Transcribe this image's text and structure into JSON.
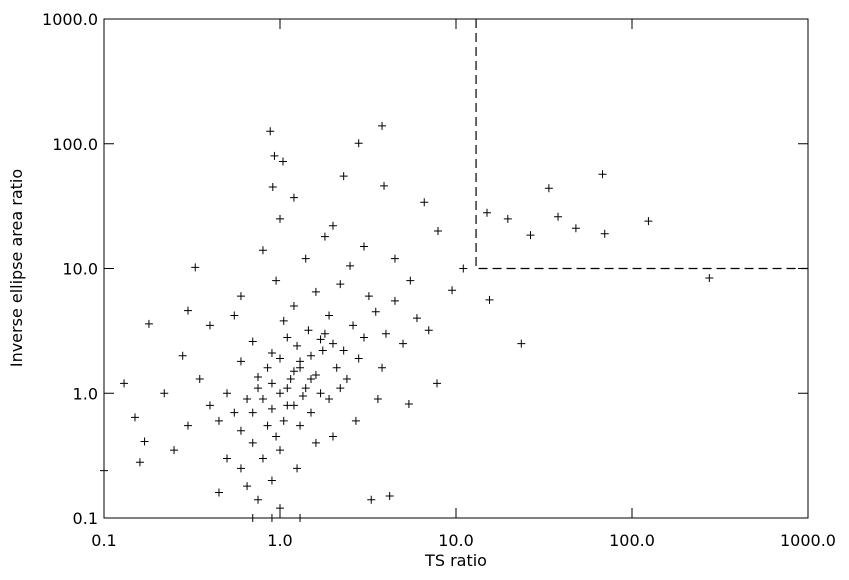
{
  "chart_data": {
    "type": "scatter",
    "x_label": "TS ratio",
    "y_label": "Inverse ellipse area ratio",
    "log_x": true,
    "log_y": true,
    "xlim": [
      0.1,
      1000
    ],
    "ylim": [
      0.1,
      1000
    ],
    "xticks": [
      {
        "value": 0.1,
        "label": "0.1"
      },
      {
        "value": 1,
        "label": "1.0"
      },
      {
        "value": 10,
        "label": "10.0"
      },
      {
        "value": 100,
        "label": "100.0"
      },
      {
        "value": 1000,
        "label": "1000.0"
      }
    ],
    "yticks": [
      {
        "value": 0.1,
        "label": "0.1"
      },
      {
        "value": 1,
        "label": "1.0"
      },
      {
        "value": 10,
        "label": "10.0"
      },
      {
        "value": 100,
        "label": "100.0"
      },
      {
        "value": 1000,
        "label": "1000.0"
      }
    ],
    "threshold_x": 13,
    "threshold_y": 10,
    "color": "#000000",
    "series": [
      {
        "color": "#000000",
        "x": [
          0.88,
          3.8,
          2.8,
          0.93,
          1.04,
          2.3,
          0.91,
          3.9,
          6.6,
          15,
          19.7,
          26.5,
          33.7,
          38,
          48,
          68,
          70,
          124,
          275,
          23.5,
          15.5,
          11,
          7.9,
          9.5,
          0.13,
          0.15,
          0.16,
          0.18,
          0.17,
          0.33,
          0.3,
          0.1,
          7.8,
          5.4,
          4.2,
          3.3,
          1.2,
          1.0,
          1.2,
          0.8,
          1.5,
          0.9,
          1.1,
          1.3,
          0.7,
          1.6,
          2.0,
          0.6,
          1.4,
          1.8,
          0.85,
          1.05,
          2.3,
          0.75,
          1.25,
          1.7,
          0.95,
          2.6,
          0.65,
          1.15,
          1.35,
          0.55,
          2.1,
          1.9,
          0.9,
          1.45,
          0.7,
          3.0,
          1.0,
          0.5,
          1.2,
          2.4,
          0.8,
          1.6,
          3.5,
          0.45,
          1.1,
          2.8,
          0.6,
          1.3,
          4.0,
          0.9,
          1.75,
          0.4,
          2.2,
          1.05,
          0.7,
          3.2,
          1.5,
          0.35,
          0.95,
          2.5,
          1.4,
          0.8,
          1.8,
          0.6,
          1.25,
          0.65,
          1.0,
          0.75,
          0.5,
          2.0,
          3.8,
          5.0,
          4.5,
          6.0,
          0.3,
          0.28,
          0.4,
          0.55,
          2.7,
          3.6,
          1.6,
          0.85,
          1.2,
          1.5,
          1.0,
          0.9,
          1.1,
          1.3,
          0.75,
          1.7,
          2.2,
          0.6,
          4.5,
          3.0,
          1.0,
          2.0,
          0.7,
          1.3,
          0.9,
          0.45,
          5.5,
          7.0,
          0.25,
          0.22,
          1.9
        ],
        "values": [
          126,
          139,
          101,
          80,
          72,
          55,
          45,
          46,
          34,
          28,
          25,
          18.5,
          44,
          26,
          21,
          57,
          19,
          24,
          8.4,
          2.5,
          5.6,
          10,
          20,
          6.7,
          1.2,
          0.64,
          0.28,
          3.6,
          0.41,
          10.2,
          4.6,
          0.24,
          1.2,
          0.82,
          0.15,
          0.14,
          37,
          1.0,
          1.5,
          0.9,
          2.0,
          1.2,
          0.8,
          1.8,
          0.7,
          1.4,
          2.5,
          0.5,
          1.1,
          3.0,
          1.6,
          0.6,
          2.2,
          1.1,
          2.4,
          1.0,
          0.45,
          3.5,
          0.9,
          1.3,
          0.95,
          0.7,
          1.6,
          4.2,
          2.1,
          3.2,
          0.4,
          2.8,
          0.35,
          1.0,
          5.0,
          1.3,
          0.3,
          6.5,
          4.5,
          0.6,
          2.8,
          1.9,
          1.8,
          0.55,
          3.0,
          0.2,
          2.2,
          0.8,
          7.5,
          3.8,
          2.6,
          6.0,
          0.7,
          1.3,
          8.0,
          10.5,
          12.0,
          14.0,
          18.0,
          6.0,
          0.25,
          0.18,
          0.12,
          0.14,
          0.3,
          0.45,
          1.6,
          2.5,
          5.5,
          4.0,
          0.55,
          2.0,
          3.5,
          4.2,
          0.6,
          0.9,
          0.4,
          0.55,
          0.8,
          1.3,
          1.9,
          0.75,
          1.1,
          1.6,
          1.35,
          2.7,
          1.1,
          0.25,
          12.0,
          15.0,
          25.0,
          22.0,
          0.1,
          0.1,
          0.1,
          0.16,
          8.0,
          3.2,
          0.35,
          1.0,
          0.9
        ]
      }
    ]
  }
}
